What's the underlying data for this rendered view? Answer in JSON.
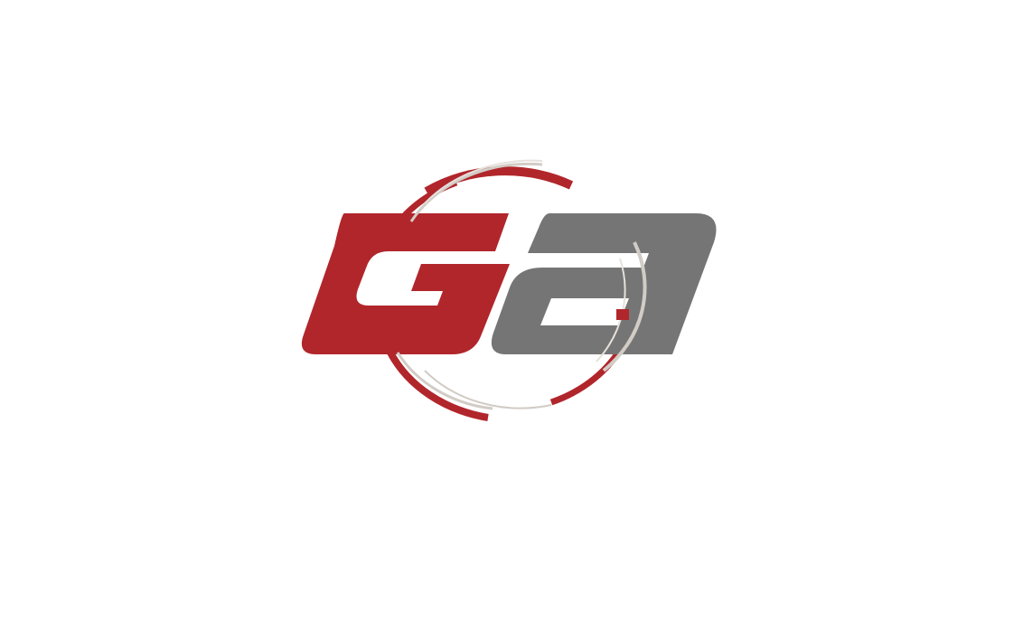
{
  "logo": {
    "lettering": "Ga",
    "colors": {
      "background": "#ffffff",
      "primary_red": "#b1262b",
      "secondary_gray": "#757575",
      "ring_light": "#d2ccc6"
    }
  }
}
